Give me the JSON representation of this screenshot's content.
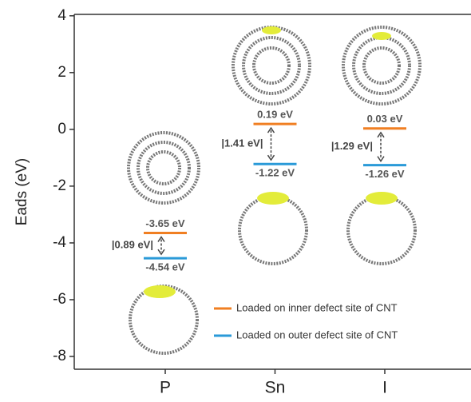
{
  "chart_data": {
    "type": "level",
    "y_label": "Eads (eV)",
    "categories": [
      "P",
      "Sn",
      "I"
    ],
    "series": [
      {
        "name": "Loaded on inner defect site of CNT",
        "color": "#f07f22",
        "values": [
          -3.65,
          0.19,
          0.03
        ],
        "value_labels": [
          "-3.65 eV",
          "0.19 eV",
          "0.03 eV"
        ]
      },
      {
        "name": "Loaded on outer defect site of CNT",
        "color": "#2a9ad8",
        "values": [
          -4.54,
          -1.22,
          -1.26
        ],
        "value_labels": [
          "-4.54 eV",
          "-1.22 eV",
          "-1.26 eV"
        ]
      }
    ],
    "gap_labels": [
      "|0.89 eV|",
      "|1.41 eV|",
      "|1.29 eV|"
    ],
    "ylim": [
      -8.45,
      4.05
    ],
    "yticks": [
      -8,
      -6,
      -4,
      -2,
      0,
      2,
      4
    ],
    "legend": "lower right"
  }
}
